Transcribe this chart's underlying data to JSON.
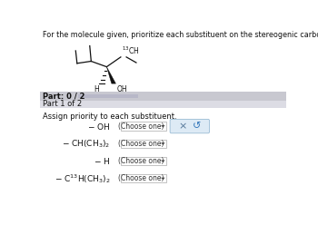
{
  "title": "For the molecule given, prioritize each substituent on the stereogenic carbon, and assign absolute stereochemistry.",
  "title_fontsize": 5.8,
  "bg_color": "#ffffff",
  "part_bar_text": "Part: 0 / 2",
  "part_bar_fontsize": 6.0,
  "part1_text": "Part 1 of 2",
  "part1_fontsize": 6.0,
  "instruction": "Assign priority to each substituent.",
  "instruction_fontsize": 6.0,
  "dropdown_label": "(Choose one)",
  "dropdown_color": "#ffffff",
  "dropdown_border": "#aaaaaa",
  "first_row_box_color": "#ddeaf5",
  "first_row_box_border": "#99bbd4",
  "x_symbol": "×",
  "refresh_symbol": "↺",
  "part_bar_bg": "#c8c8d0",
  "part1_bar_bg": "#dcdce4",
  "white_bg": "#ffffff",
  "progress_bar_color": "#b8b8c8",
  "molecule_color": "#111111",
  "c13_color": "#4488cc"
}
